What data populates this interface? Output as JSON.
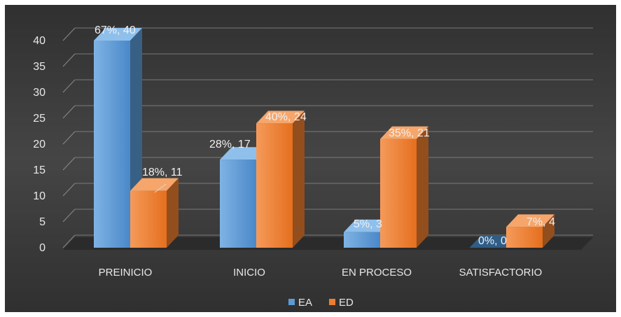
{
  "chart_data": {
    "type": "bar",
    "title": "",
    "xlabel": "",
    "ylabel": "",
    "ylim": [
      0,
      40
    ],
    "yticks": [
      "0",
      "5",
      "10",
      "15",
      "20",
      "25",
      "30",
      "35",
      "40"
    ],
    "categories": [
      "PREINICIO",
      "INICIO",
      "EN PROCESO",
      "SATISFACTORIO"
    ],
    "series": [
      {
        "name": "EA",
        "color": "#5B9BD5",
        "values": [
          40,
          17,
          3,
          0
        ],
        "labels": [
          "67%, 40",
          "28%, 17",
          "5%, 3",
          "0%, 0"
        ]
      },
      {
        "name": "ED",
        "color": "#ED7D31",
        "values": [
          11,
          24,
          21,
          4
        ],
        "labels": [
          "18%, 11",
          "40%, 24",
          "35%, 21",
          "7%, 4"
        ]
      }
    ],
    "grid": true,
    "legend": "bottom",
    "style": "3d-clustered-column",
    "background": "#404040"
  }
}
